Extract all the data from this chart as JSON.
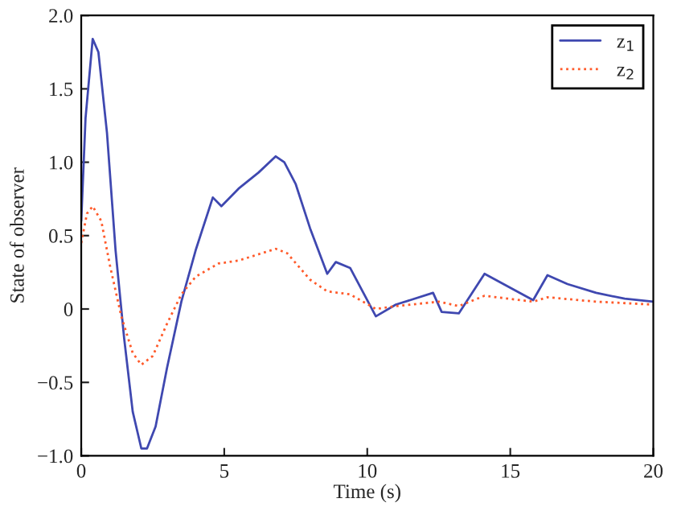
{
  "chart_data": {
    "type": "line",
    "xlabel": "Time (s)",
    "ylabel": "State of observer",
    "xlim": [
      0,
      20
    ],
    "xticks": [
      0,
      5,
      10,
      15,
      20
    ],
    "ylim": [
      -1.0,
      2.0
    ],
    "yticks": [
      {
        "value": -1.0,
        "label": "−1.0"
      },
      {
        "value": -0.5,
        "label": "−0.5"
      },
      0,
      0.5,
      {
        "value": 1.0,
        "label": "1.0"
      },
      1.5,
      {
        "value": 2.0,
        "label": "2.0"
      }
    ],
    "legend": "top right",
    "grid": false,
    "series": [
      {
        "name": "z$_{1}$",
        "color": "#3f48b0",
        "line_style": "solid",
        "x": [
          0,
          0.15,
          0.4,
          0.6,
          0.9,
          1.2,
          1.5,
          1.8,
          2.1,
          2.3,
          2.6,
          3.0,
          3.5,
          4.0,
          4.6,
          4.9,
          5.5,
          6.2,
          6.8,
          7.1,
          7.5,
          8.0,
          8.6,
          8.9,
          9.4,
          10.3,
          11.0,
          12.3,
          12.6,
          13.2,
          14.1,
          15.8,
          16.3,
          17,
          18,
          19,
          20
        ],
        "values": [
          0.6,
          1.3,
          1.84,
          1.75,
          1.2,
          0.4,
          -0.2,
          -0.7,
          -0.95,
          -0.95,
          -0.8,
          -0.4,
          0.05,
          0.4,
          0.76,
          0.7,
          0.82,
          0.93,
          1.04,
          1.0,
          0.85,
          0.55,
          0.24,
          0.32,
          0.28,
          -0.05,
          0.03,
          0.11,
          -0.02,
          -0.03,
          0.24,
          0.06,
          0.23,
          0.17,
          0.11,
          0.07,
          0.05
        ]
      },
      {
        "name": "z$_{2}$",
        "color": "#ff5a2a",
        "line_style": "dotted",
        "x": [
          0,
          0.2,
          0.4,
          0.7,
          1.0,
          1.4,
          1.8,
          2.1,
          2.5,
          3.0,
          3.5,
          4.0,
          4.8,
          5.5,
          6.8,
          7.2,
          8.0,
          8.6,
          9.4,
          10.3,
          11,
          12.5,
          13.2,
          14.1,
          15.8,
          16.3,
          18,
          20
        ],
        "values": [
          0.45,
          0.65,
          0.7,
          0.6,
          0.3,
          -0.05,
          -0.3,
          -0.38,
          -0.32,
          -0.1,
          0.1,
          0.22,
          0.31,
          0.33,
          0.41,
          0.38,
          0.2,
          0.12,
          0.1,
          0.0,
          0.02,
          0.05,
          0.02,
          0.09,
          0.05,
          0.08,
          0.05,
          0.03
        ]
      }
    ]
  }
}
